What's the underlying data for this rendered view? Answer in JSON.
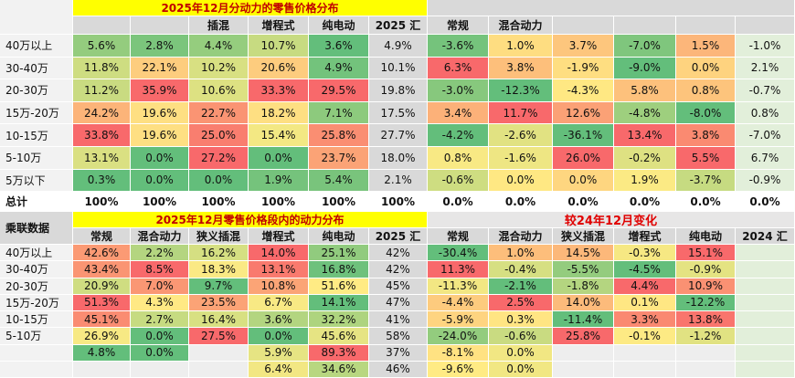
{
  "top": {
    "title": "2025年12月分动力的零售价格分布",
    "headers": [
      null,
      null,
      "插混",
      "增程式",
      "纯电动",
      "2025 汇",
      "常规",
      "混合动力",
      null,
      null,
      null,
      null
    ],
    "rows": [
      {
        "label": "40万以上",
        "cells": [
          "5.6%",
          "2.8%",
          "4.4%",
          "10.7%",
          "3.6%",
          "4.9%",
          "-3.6%",
          "1.0%",
          "3.7%",
          "-7.0%",
          "1.5%",
          "-1.0%"
        ]
      },
      {
        "label": "30-40万",
        "cells": [
          "11.8%",
          "22.1%",
          "10.2%",
          "20.6%",
          "4.9%",
          "10.1%",
          "6.3%",
          "3.8%",
          "-1.9%",
          "-9.0%",
          "0.0%",
          "2.1%"
        ]
      },
      {
        "label": "20-30万",
        "cells": [
          "11.2%",
          "35.9%",
          "10.6%",
          "33.3%",
          "29.5%",
          "19.8%",
          "-3.0%",
          "-12.3%",
          "-4.3%",
          "5.8%",
          "0.8%",
          "-0.7%"
        ]
      },
      {
        "label": "15万-20万",
        "cells": [
          "24.2%",
          "19.6%",
          "22.7%",
          "18.2%",
          "7.1%",
          "17.5%",
          "3.4%",
          "11.7%",
          "12.6%",
          "-4.8%",
          "-8.0%",
          "0.8%"
        ]
      },
      {
        "label": "10-15万",
        "cells": [
          "33.8%",
          "19.6%",
          "25.0%",
          "15.4%",
          "25.8%",
          "27.7%",
          "-4.2%",
          "-2.6%",
          "-36.1%",
          "13.4%",
          "3.8%",
          "-7.0%"
        ]
      },
      {
        "label": "5-10万",
        "cells": [
          "13.1%",
          "0.0%",
          "27.2%",
          "0.0%",
          "23.7%",
          "18.0%",
          "0.8%",
          "-1.6%",
          "26.0%",
          "-0.2%",
          "5.5%",
          "6.7%"
        ]
      },
      {
        "label": "5万以下",
        "cells": [
          "0.3%",
          "0.0%",
          "0.0%",
          "1.9%",
          "5.4%",
          "2.1%",
          "-0.6%",
          "0.0%",
          "0.0%",
          "1.9%",
          "-3.7%",
          "-0.9%"
        ]
      }
    ],
    "total": {
      "label": "总计",
      "cells": [
        "100%",
        "100%",
        "100%",
        "100%",
        "100%",
        "100%",
        "0.0%",
        "0.0%",
        "0.0%",
        "0.0%",
        "0.0%",
        "0.0%"
      ]
    }
  },
  "bottom": {
    "corner": "乘联数据",
    "title": "2025年12月零售价格段内的动力分布",
    "change_title": "较24年12月变化",
    "headers": [
      "常规",
      "混合动力",
      "狭义插混",
      "增程式",
      "纯电动",
      "2025 汇",
      "常规",
      "混合动力",
      "狭义插混",
      "增程式",
      "纯电动",
      "2024 汇"
    ],
    "rows": [
      {
        "label": "40万以上",
        "cells": [
          "42.6%",
          "2.2%",
          "16.2%",
          "14.0%",
          "25.1%",
          "42%",
          "-30.4%",
          "1.0%",
          "14.5%",
          "-0.3%",
          "15.1%",
          null
        ]
      },
      {
        "label": "30-40万",
        "cells": [
          "43.4%",
          "8.5%",
          "18.3%",
          "13.1%",
          "16.8%",
          "42%",
          "11.3%",
          "-0.4%",
          "-5.5%",
          "-4.5%",
          "-0.9%",
          null
        ]
      },
      {
        "label": "20-30万",
        "cells": [
          "20.9%",
          "7.0%",
          "9.7%",
          "10.8%",
          "51.6%",
          "45%",
          "-11.3%",
          "-2.1%",
          "-1.8%",
          "4.4%",
          "10.9%",
          null
        ]
      },
      {
        "label": "15万-20万",
        "cells": [
          "51.3%",
          "4.3%",
          "23.5%",
          "6.7%",
          "14.1%",
          "47%",
          "-4.4%",
          "2.5%",
          "14.0%",
          "0.1%",
          "-12.2%",
          null
        ]
      },
      {
        "label": "10-15万",
        "cells": [
          "45.1%",
          "2.7%",
          "16.4%",
          "3.6%",
          "32.2%",
          "41%",
          "-5.9%",
          "0.3%",
          "-11.4%",
          "3.3%",
          "13.8%",
          null
        ]
      },
      {
        "label": "5-10万",
        "cells": [
          "26.9%",
          "0.0%",
          "27.5%",
          "0.0%",
          "45.6%",
          "58%",
          "-24.0%",
          "-0.6%",
          "25.8%",
          "-0.1%",
          "-1.2%",
          null
        ]
      },
      {
        "label": null,
        "cells": [
          "4.8%",
          "0.0%",
          null,
          "5.9%",
          "89.3%",
          "37%",
          "-8.1%",
          "0.0%",
          null,
          null,
          null,
          null
        ]
      },
      {
        "label": null,
        "cells": [
          null,
          null,
          null,
          "6.4%",
          "34.6%",
          "46%",
          "-9.6%",
          "0.0%",
          null,
          null,
          null,
          null
        ]
      }
    ]
  }
}
